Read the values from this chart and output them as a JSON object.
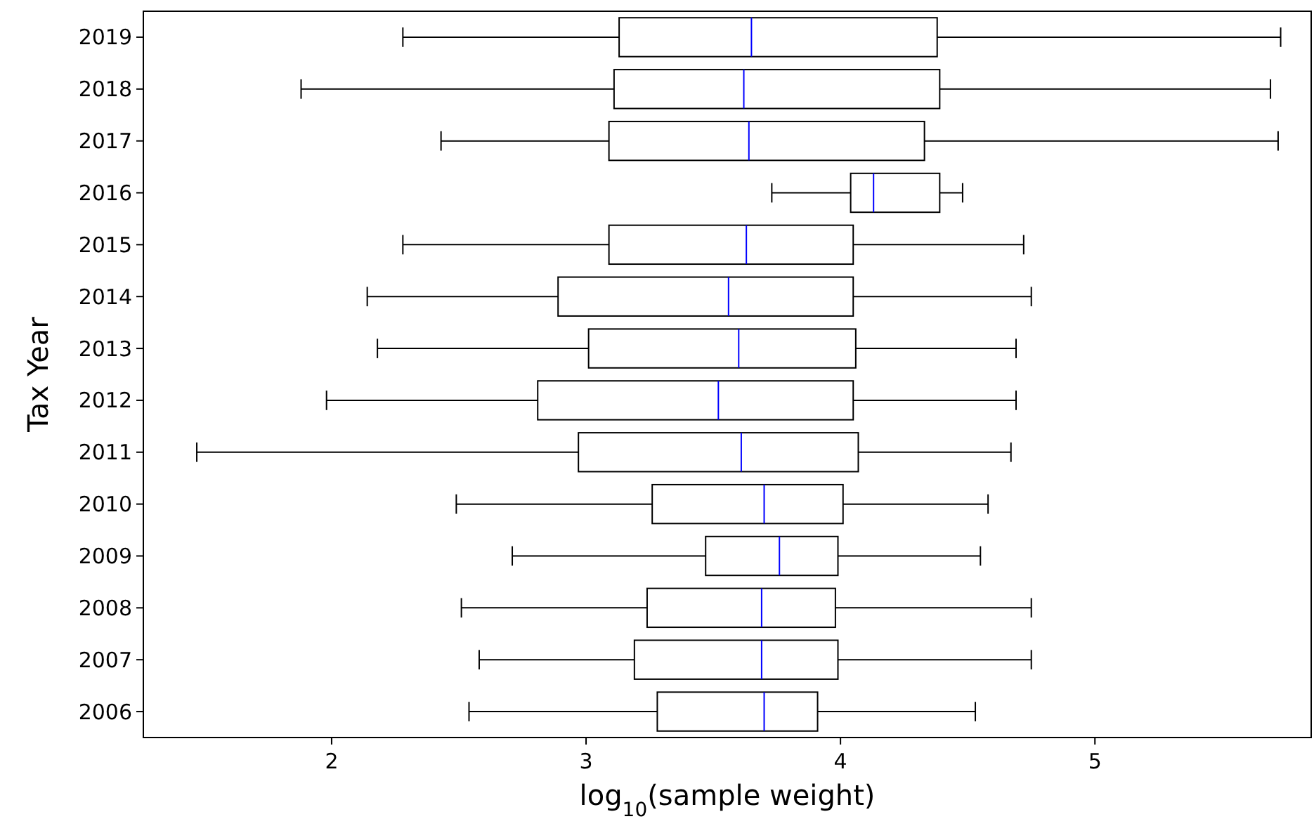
{
  "chart_data": {
    "type": "box",
    "orientation": "horizontal",
    "xlabel": "log$_{10}$(sample weight)",
    "ylabel": "Tax Year",
    "color": "#000000",
    "categories": [
      "2019",
      "2018",
      "2017",
      "2016",
      "2015",
      "2014",
      "2013",
      "2012",
      "2011",
      "2010",
      "2009",
      "2008",
      "2007",
      "2006"
    ],
    "xlim": [
      1.26,
      5.85
    ],
    "xticks": [
      2,
      3,
      4,
      5
    ],
    "grid": false,
    "boxes": [
      {
        "low": 2.28,
        "q1": 3.13,
        "median": 3.65,
        "q3": 4.38,
        "high": 5.73
      },
      {
        "low": 1.88,
        "q1": 3.11,
        "median": 3.62,
        "q3": 4.39,
        "high": 5.69
      },
      {
        "low": 2.43,
        "q1": 3.09,
        "median": 3.64,
        "q3": 4.33,
        "high": 5.72
      },
      {
        "low": 3.73,
        "q1": 4.04,
        "median": 4.13,
        "q3": 4.39,
        "high": 4.48
      },
      {
        "low": 2.28,
        "q1": 3.09,
        "median": 3.63,
        "q3": 4.05,
        "high": 4.72
      },
      {
        "low": 2.14,
        "q1": 2.89,
        "median": 3.56,
        "q3": 4.05,
        "high": 4.75
      },
      {
        "low": 2.18,
        "q1": 3.01,
        "median": 3.6,
        "q3": 4.06,
        "high": 4.69
      },
      {
        "low": 1.98,
        "q1": 2.81,
        "median": 3.52,
        "q3": 4.05,
        "high": 4.69
      },
      {
        "low": 1.47,
        "q1": 2.97,
        "median": 3.61,
        "q3": 4.07,
        "high": 4.67
      },
      {
        "low": 2.49,
        "q1": 3.26,
        "median": 3.7,
        "q3": 4.01,
        "high": 4.58
      },
      {
        "low": 2.71,
        "q1": 3.47,
        "median": 3.76,
        "q3": 3.99,
        "high": 4.55
      },
      {
        "low": 2.51,
        "q1": 3.24,
        "median": 3.69,
        "q3": 3.98,
        "high": 4.75
      },
      {
        "low": 2.58,
        "q1": 3.19,
        "median": 3.69,
        "q3": 3.99,
        "high": 4.75
      },
      {
        "low": 2.54,
        "q1": 3.28,
        "median": 3.7,
        "q3": 3.91,
        "high": 4.53
      }
    ]
  }
}
